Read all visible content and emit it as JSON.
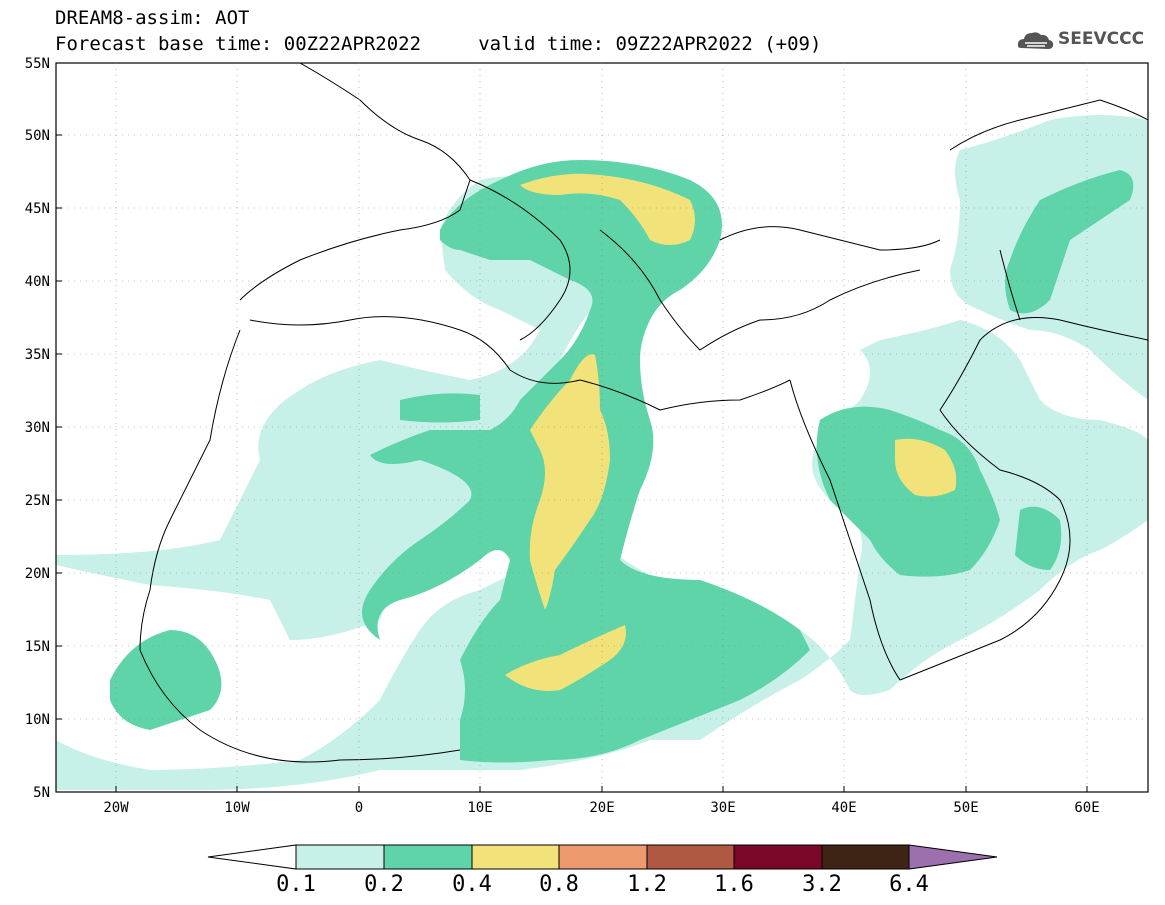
{
  "header": {
    "title_line1": "DREAM8-assim: AOT",
    "title_line2": "Forecast base time: 00Z22APR2022     valid time: 09Z22APR2022 (+09)",
    "logo_text": "SEEVCCC"
  },
  "map": {
    "lat_labels": [
      "55N",
      "50N",
      "45N",
      "40N",
      "35N",
      "30N",
      "25N",
      "20N",
      "15N",
      "10N",
      "5N"
    ],
    "lon_labels": [
      "20W",
      "10W",
      "0",
      "10E",
      "20E",
      "30E",
      "40E",
      "50E",
      "60E"
    ],
    "colors": {
      "c01": "#c6f0e8",
      "c02": "#5ed4a8",
      "c04": "#f2e27a",
      "c08": "#ee9a6e",
      "c12": "#b05842",
      "c16": "#7a0628",
      "c32": "#3e2414",
      "c64": "#9c6fae"
    }
  },
  "colorbar": {
    "labels": [
      "0.1",
      "0.2",
      "0.4",
      "0.8",
      "1.2",
      "1.6",
      "3.2",
      "6.4"
    ]
  }
}
